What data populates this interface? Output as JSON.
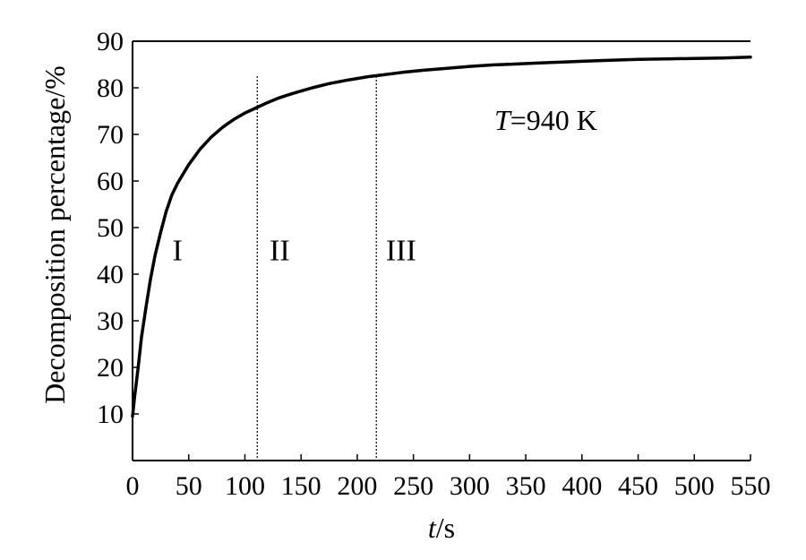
{
  "chart_data": {
    "type": "line",
    "title": "",
    "xlabel": {
      "italic": "t",
      "rest": "/s"
    },
    "ylabel": "Decomposition percentage/%",
    "xlim": [
      0,
      550
    ],
    "ylim": [
      0,
      90
    ],
    "x_ticks": [
      0,
      50,
      100,
      150,
      200,
      250,
      300,
      350,
      400,
      450,
      500,
      550
    ],
    "x_tick_labels": [
      "0",
      "50",
      "100",
      "150",
      "200",
      "250",
      "300",
      "350",
      "400",
      "450",
      "500",
      "550"
    ],
    "y_ticks": [
      10,
      20,
      30,
      40,
      50,
      60,
      70,
      80,
      90
    ],
    "y_tick_labels": [
      "10",
      "20",
      "30",
      "40",
      "50",
      "60",
      "70",
      "80",
      "90"
    ],
    "grid": false,
    "series": [
      {
        "color": "#000000",
        "x": [
          0,
          2,
          5,
          8,
          12,
          16,
          20,
          25,
          30,
          35,
          40,
          50,
          60,
          70,
          80,
          90,
          100,
          110,
          120,
          130,
          140,
          150,
          160,
          175,
          190,
          200,
          210,
          220,
          240,
          260,
          280,
          300,
          320,
          340,
          360,
          380,
          400,
          425,
          450,
          475,
          500,
          525,
          550
        ],
        "y": [
          9.5,
          14,
          20,
          26.5,
          33,
          39,
          44,
          49,
          53.5,
          57,
          59.5,
          63.5,
          66.8,
          69.4,
          71.5,
          73.2,
          74.6,
          75.7,
          76.8,
          77.8,
          78.6,
          79.3,
          80,
          80.9,
          81.6,
          82,
          82.4,
          82.7,
          83.3,
          83.8,
          84.2,
          84.6,
          84.9,
          85.1,
          85.3,
          85.5,
          85.7,
          85.9,
          86.1,
          86.2,
          86.3,
          86.4,
          86.6
        ]
      }
    ],
    "vertical_lines": [
      {
        "x": 111,
        "style": "dotted"
      },
      {
        "x": 217,
        "style": "dotted"
      }
    ],
    "region_labels": [
      {
        "text": "I",
        "x": 40,
        "y": 43
      },
      {
        "text": "II",
        "x": 131,
        "y": 43
      },
      {
        "text": "III",
        "x": 239,
        "y": 43
      }
    ],
    "annotation": {
      "italic": "T",
      "rest": "=940 K",
      "x": 322,
      "y": 71
    }
  }
}
